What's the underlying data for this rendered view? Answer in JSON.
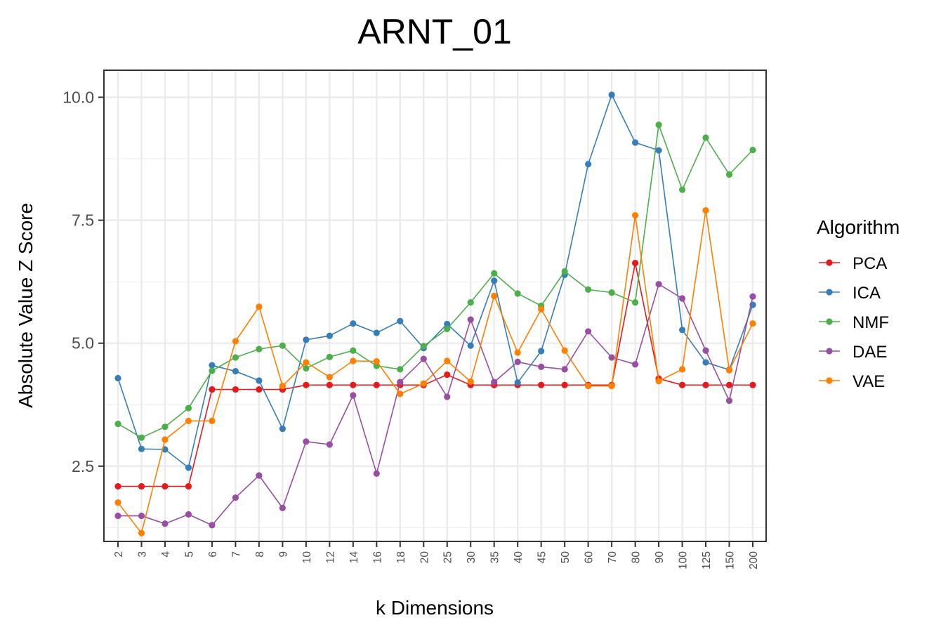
{
  "chart_data": {
    "type": "line",
    "title": "ARNT_01",
    "xlabel": "k Dimensions",
    "ylabel": "Absolute Value Z Score",
    "categories": [
      "2",
      "3",
      "4",
      "5",
      "6",
      "7",
      "8",
      "9",
      "10",
      "12",
      "14",
      "16",
      "18",
      "20",
      "25",
      "30",
      "35",
      "40",
      "45",
      "50",
      "60",
      "70",
      "80",
      "90",
      "100",
      "125",
      "150",
      "200"
    ],
    "y_ticks": [
      "2.5",
      "5.0",
      "7.5",
      "10.0"
    ],
    "ylim": [
      0.97,
      10.55
    ],
    "grid": true,
    "legend_title": "Algorithm",
    "legend_position": "right",
    "series": [
      {
        "name": "PCA",
        "color": "#E41A1C",
        "values": [
          2.09,
          2.09,
          2.09,
          2.09,
          4.06,
          4.06,
          4.06,
          4.06,
          4.15,
          4.15,
          4.15,
          4.15,
          4.15,
          4.15,
          4.36,
          4.15,
          4.15,
          4.15,
          4.15,
          4.15,
          4.15,
          4.15,
          6.63,
          4.28,
          4.15,
          4.15,
          4.15,
          4.15
        ]
      },
      {
        "name": "ICA",
        "color": "#377EB8",
        "values": [
          4.29,
          2.85,
          2.84,
          2.47,
          4.55,
          4.43,
          4.24,
          3.26,
          5.07,
          5.15,
          5.4,
          5.21,
          5.45,
          4.9,
          5.39,
          4.95,
          6.27,
          4.2,
          4.84,
          6.39,
          8.64,
          10.05,
          9.08,
          8.92,
          5.27,
          4.61,
          4.46,
          5.78
        ]
      },
      {
        "name": "NMF",
        "color": "#4DAF4A",
        "values": [
          3.36,
          3.08,
          3.3,
          3.68,
          4.44,
          4.71,
          4.88,
          4.95,
          4.49,
          4.72,
          4.85,
          4.54,
          4.47,
          4.94,
          5.29,
          5.83,
          6.42,
          6.01,
          5.76,
          6.46,
          6.09,
          6.03,
          5.83,
          9.44,
          8.12,
          9.18,
          8.43,
          8.93
        ]
      },
      {
        "name": "DAE",
        "color": "#984EA3",
        "values": [
          1.49,
          1.49,
          1.33,
          1.52,
          1.3,
          1.86,
          2.31,
          1.65,
          3.0,
          2.94,
          3.94,
          2.35,
          4.21,
          4.68,
          3.91,
          5.48,
          4.21,
          4.62,
          4.52,
          4.47,
          5.24,
          4.71,
          4.57,
          6.2,
          5.91,
          4.85,
          3.83,
          5.95
        ]
      },
      {
        "name": "VAE",
        "color": "#FF7F00",
        "values": [
          1.76,
          1.14,
          3.04,
          3.42,
          3.42,
          5.04,
          5.74,
          4.13,
          4.61,
          4.31,
          4.64,
          4.63,
          3.97,
          4.18,
          4.64,
          4.22,
          5.96,
          4.81,
          5.69,
          4.85,
          4.13,
          4.13,
          7.6,
          4.23,
          4.47,
          7.7,
          4.45,
          5.4
        ]
      }
    ]
  }
}
